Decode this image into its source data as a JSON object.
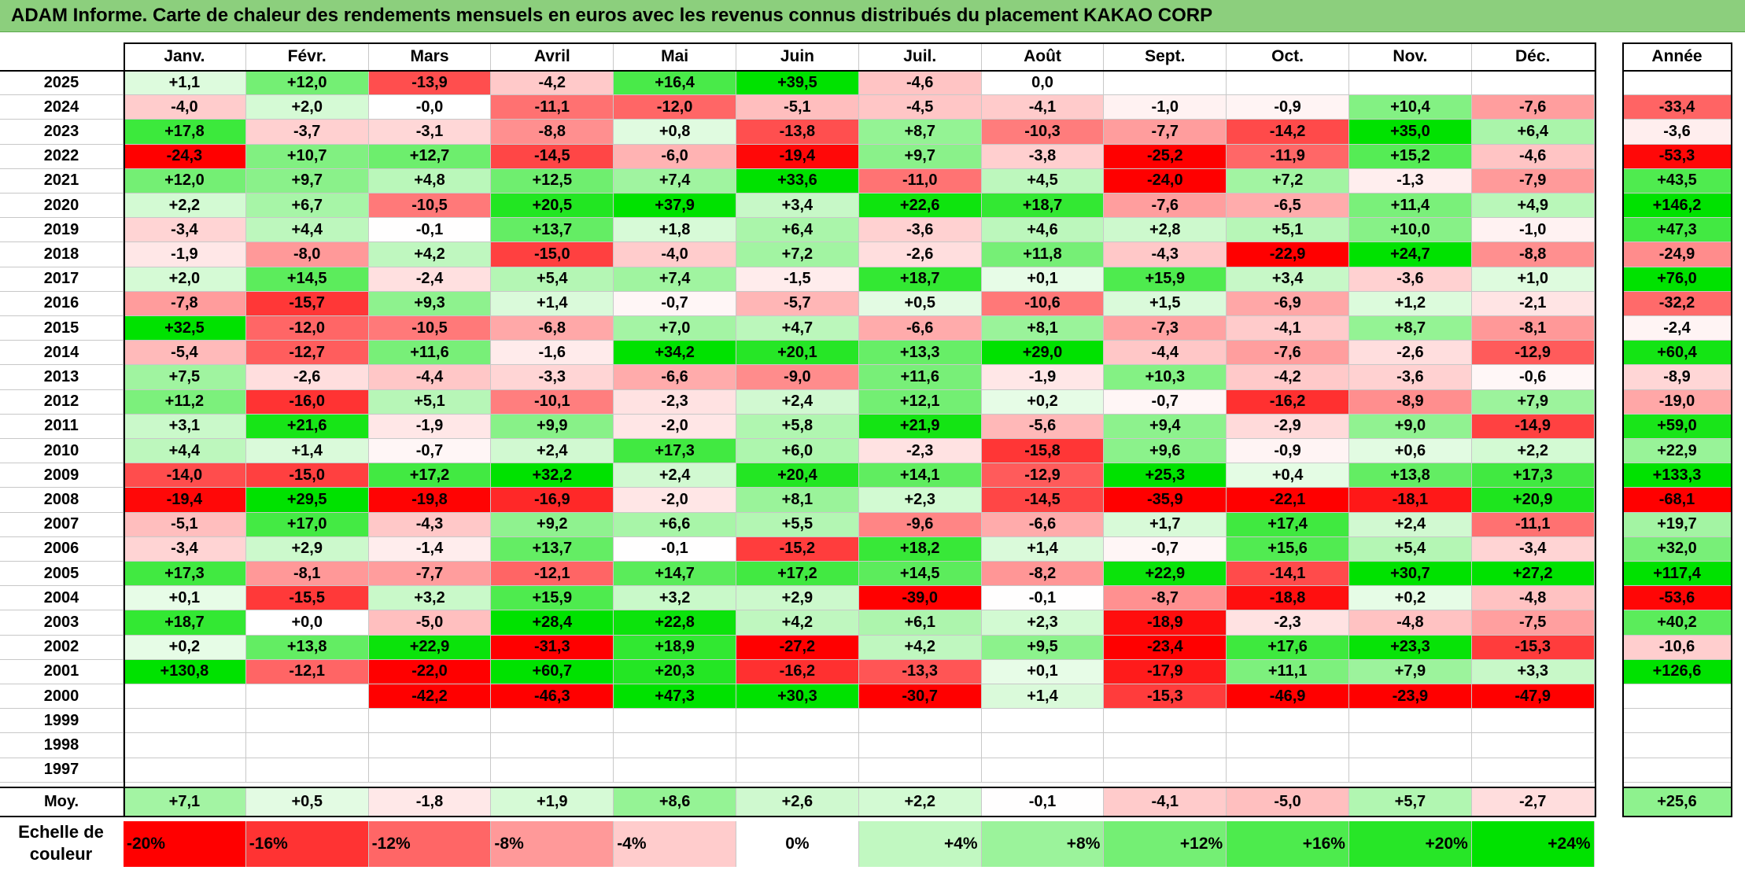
{
  "title": "ADAM Informe. Carte de chaleur des rendements mensuels en euros avec les revenus connus distribués du placement KAKAO CORP",
  "chart_data": {
    "type": "heatmap",
    "months": [
      "Janv.",
      "Févr.",
      "Mars",
      "Avril",
      "Mai",
      "Juin",
      "Juil.",
      "Août",
      "Sept.",
      "Oct.",
      "Nov.",
      "Déc."
    ],
    "year_header": "Année",
    "rows": [
      {
        "year": "2025",
        "values": [
          "+1,1",
          "+12,0",
          "-13,9",
          "-4,2",
          "+16,4",
          "+39,5",
          "-4,6",
          "0,0",
          "",
          "",
          "",
          ""
        ],
        "annual": ""
      },
      {
        "year": "2024",
        "values": [
          "-4,0",
          "+2,0",
          "-0,0",
          "-11,1",
          "-12,0",
          "-5,1",
          "-4,5",
          "-4,1",
          "-1,0",
          "-0,9",
          "+10,4",
          "-7,6"
        ],
        "annual": "-33,4"
      },
      {
        "year": "2023",
        "values": [
          "+17,8",
          "-3,7",
          "-3,1",
          "-8,8",
          "+0,8",
          "-13,8",
          "+8,7",
          "-10,3",
          "-7,7",
          "-14,2",
          "+35,0",
          "+6,4"
        ],
        "annual": "-3,6"
      },
      {
        "year": "2022",
        "values": [
          "-24,3",
          "+10,7",
          "+12,7",
          "-14,5",
          "-6,0",
          "-19,4",
          "+9,7",
          "-3,8",
          "-25,2",
          "-11,9",
          "+15,2",
          "-4,6"
        ],
        "annual": "-53,3"
      },
      {
        "year": "2021",
        "values": [
          "+12,0",
          "+9,7",
          "+4,8",
          "+12,5",
          "+7,4",
          "+33,6",
          "-11,0",
          "+4,5",
          "-24,0",
          "+7,2",
          "-1,3",
          "-7,9"
        ],
        "annual": "+43,5"
      },
      {
        "year": "2020",
        "values": [
          "+2,2",
          "+6,7",
          "-10,5",
          "+20,5",
          "+37,9",
          "+3,4",
          "+22,6",
          "+18,7",
          "-7,6",
          "-6,5",
          "+11,4",
          "+4,9"
        ],
        "annual": "+146,2"
      },
      {
        "year": "2019",
        "values": [
          "-3,4",
          "+4,4",
          "-0,1",
          "+13,7",
          "+1,8",
          "+6,4",
          "-3,6",
          "+4,6",
          "+2,8",
          "+5,1",
          "+10,0",
          "-1,0"
        ],
        "annual": "+47,3"
      },
      {
        "year": "2018",
        "values": [
          "-1,9",
          "-8,0",
          "+4,2",
          "-15,0",
          "-4,0",
          "+7,2",
          "-2,6",
          "+11,8",
          "-4,3",
          "-22,9",
          "+24,7",
          "-8,8"
        ],
        "annual": "-24,9"
      },
      {
        "year": "2017",
        "values": [
          "+2,0",
          "+14,5",
          "-2,4",
          "+5,4",
          "+7,4",
          "-1,5",
          "+18,7",
          "+0,1",
          "+15,9",
          "+3,4",
          "-3,6",
          "+1,0"
        ],
        "annual": "+76,0"
      },
      {
        "year": "2016",
        "values": [
          "-7,8",
          "-15,7",
          "+9,3",
          "+1,4",
          "-0,7",
          "-5,7",
          "+0,5",
          "-10,6",
          "+1,5",
          "-6,9",
          "+1,2",
          "-2,1"
        ],
        "annual": "-32,2"
      },
      {
        "year": "2015",
        "values": [
          "+32,5",
          "-12,0",
          "-10,5",
          "-6,8",
          "+7,0",
          "+4,7",
          "-6,6",
          "+8,1",
          "-7,3",
          "-4,1",
          "+8,7",
          "-8,1"
        ],
        "annual": "-2,4"
      },
      {
        "year": "2014",
        "values": [
          "-5,4",
          "-12,7",
          "+11,6",
          "-1,6",
          "+34,2",
          "+20,1",
          "+13,3",
          "+29,0",
          "-4,4",
          "-7,6",
          "-2,6",
          "-12,9"
        ],
        "annual": "+60,4"
      },
      {
        "year": "2013",
        "values": [
          "+7,5",
          "-2,6",
          "-4,4",
          "-3,3",
          "-6,6",
          "-9,0",
          "+11,6",
          "-1,9",
          "+10,3",
          "-4,2",
          "-3,6",
          "-0,6"
        ],
        "annual": "-8,9"
      },
      {
        "year": "2012",
        "values": [
          "+11,2",
          "-16,0",
          "+5,1",
          "-10,1",
          "-2,3",
          "+2,4",
          "+12,1",
          "+0,2",
          "-0,7",
          "-16,2",
          "-8,9",
          "+7,9"
        ],
        "annual": "-19,0"
      },
      {
        "year": "2011",
        "values": [
          "+3,1",
          "+21,6",
          "-1,9",
          "+9,9",
          "-2,0",
          "+5,8",
          "+21,9",
          "-5,6",
          "+9,4",
          "-2,9",
          "+9,0",
          "-14,9"
        ],
        "annual": "+59,0"
      },
      {
        "year": "2010",
        "values": [
          "+4,4",
          "+1,4",
          "-0,7",
          "+2,4",
          "+17,3",
          "+6,0",
          "-2,3",
          "-15,8",
          "+9,6",
          "-0,9",
          "+0,6",
          "+2,2"
        ],
        "annual": "+22,9"
      },
      {
        "year": "2009",
        "values": [
          "-14,0",
          "-15,0",
          "+17,2",
          "+32,2",
          "+2,4",
          "+20,4",
          "+14,1",
          "-12,9",
          "+25,3",
          "+0,4",
          "+13,8",
          "+17,3"
        ],
        "annual": "+133,3"
      },
      {
        "year": "2008",
        "values": [
          "-19,4",
          "+29,5",
          "-19,8",
          "-16,9",
          "-2,0",
          "+8,1",
          "+2,3",
          "-14,5",
          "-35,9",
          "-22,1",
          "-18,1",
          "+20,9"
        ],
        "annual": "-68,1"
      },
      {
        "year": "2007",
        "values": [
          "-5,1",
          "+17,0",
          "-4,3",
          "+9,2",
          "+6,6",
          "+5,5",
          "-9,6",
          "-6,6",
          "+1,7",
          "+17,4",
          "+2,4",
          "-11,1"
        ],
        "annual": "+19,7"
      },
      {
        "year": "2006",
        "values": [
          "-3,4",
          "+2,9",
          "-1,4",
          "+13,7",
          "-0,1",
          "-15,2",
          "+18,2",
          "+1,4",
          "-0,7",
          "+15,6",
          "+5,4",
          "-3,4"
        ],
        "annual": "+32,0"
      },
      {
        "year": "2005",
        "values": [
          "+17,3",
          "-8,1",
          "-7,7",
          "-12,1",
          "+14,7",
          "+17,2",
          "+14,5",
          "-8,2",
          "+22,9",
          "-14,1",
          "+30,7",
          "+27,2"
        ],
        "annual": "+117,4"
      },
      {
        "year": "2004",
        "values": [
          "+0,1",
          "-15,5",
          "+3,2",
          "+15,9",
          "+3,2",
          "+2,9",
          "-39,0",
          "-0,1",
          "-8,7",
          "-18,8",
          "+0,2",
          "-4,8"
        ],
        "annual": "-53,6"
      },
      {
        "year": "2003",
        "values": [
          "+18,7",
          "+0,0",
          "-5,0",
          "+28,4",
          "+22,8",
          "+4,2",
          "+6,1",
          "+2,3",
          "-18,9",
          "-2,3",
          "-4,8",
          "-7,5"
        ],
        "annual": "+40,2"
      },
      {
        "year": "2002",
        "values": [
          "+0,2",
          "+13,8",
          "+22,9",
          "-31,3",
          "+18,9",
          "-27,2",
          "+4,2",
          "+9,5",
          "-23,4",
          "+17,6",
          "+23,3",
          "-15,3"
        ],
        "annual": "-10,6"
      },
      {
        "year": "2001",
        "values": [
          "+130,8",
          "-12,1",
          "-22,0",
          "+60,7",
          "+20,3",
          "-16,2",
          "-13,3",
          "+0,1",
          "-17,9",
          "+11,1",
          "+7,9",
          "+3,3"
        ],
        "annual": "+126,6"
      },
      {
        "year": "2000",
        "values": [
          "",
          "",
          "-42,2",
          "-46,3",
          "+47,3",
          "+30,3",
          "-30,7",
          "+1,4",
          "-15,3",
          "-46,9",
          "-23,9",
          "-47,9"
        ],
        "annual": ""
      },
      {
        "year": "1999",
        "values": [
          "",
          "",
          "",
          "",
          "",
          "",
          "",
          "",
          "",
          "",
          "",
          ""
        ],
        "annual": ""
      },
      {
        "year": "1998",
        "values": [
          "",
          "",
          "",
          "",
          "",
          "",
          "",
          "",
          "",
          "",
          "",
          ""
        ],
        "annual": ""
      },
      {
        "year": "1997",
        "values": [
          "",
          "",
          "",
          "",
          "",
          "",
          "",
          "",
          "",
          "",
          "",
          ""
        ],
        "annual": ""
      }
    ],
    "average": {
      "label": "Moy.",
      "values": [
        "+7,1",
        "+0,5",
        "-1,8",
        "+1,9",
        "+8,6",
        "+2,6",
        "+2,2",
        "-0,1",
        "-4,1",
        "-5,0",
        "+5,7",
        "-2,7"
      ],
      "annual": "+25,6"
    },
    "scale": {
      "label": "Echelle de couleur",
      "stops": [
        {
          "label": "-20%",
          "value": -20
        },
        {
          "label": "-16%",
          "value": -16
        },
        {
          "label": "-12%",
          "value": -12
        },
        {
          "label": "-8%",
          "value": -8
        },
        {
          "label": "-4%",
          "value": -4
        },
        {
          "label": "0%",
          "value": 0
        },
        {
          "label": "+4%",
          "value": 4
        },
        {
          "label": "+8%",
          "value": 8
        },
        {
          "label": "+12%",
          "value": 12
        },
        {
          "label": "+16%",
          "value": 16
        },
        {
          "label": "+20%",
          "value": 20
        },
        {
          "label": "+24%",
          "value": 24
        }
      ]
    },
    "colors": {
      "negative_max": "#ff0000",
      "neutral": "#ffffff",
      "positive_max": "#00e000"
    }
  }
}
